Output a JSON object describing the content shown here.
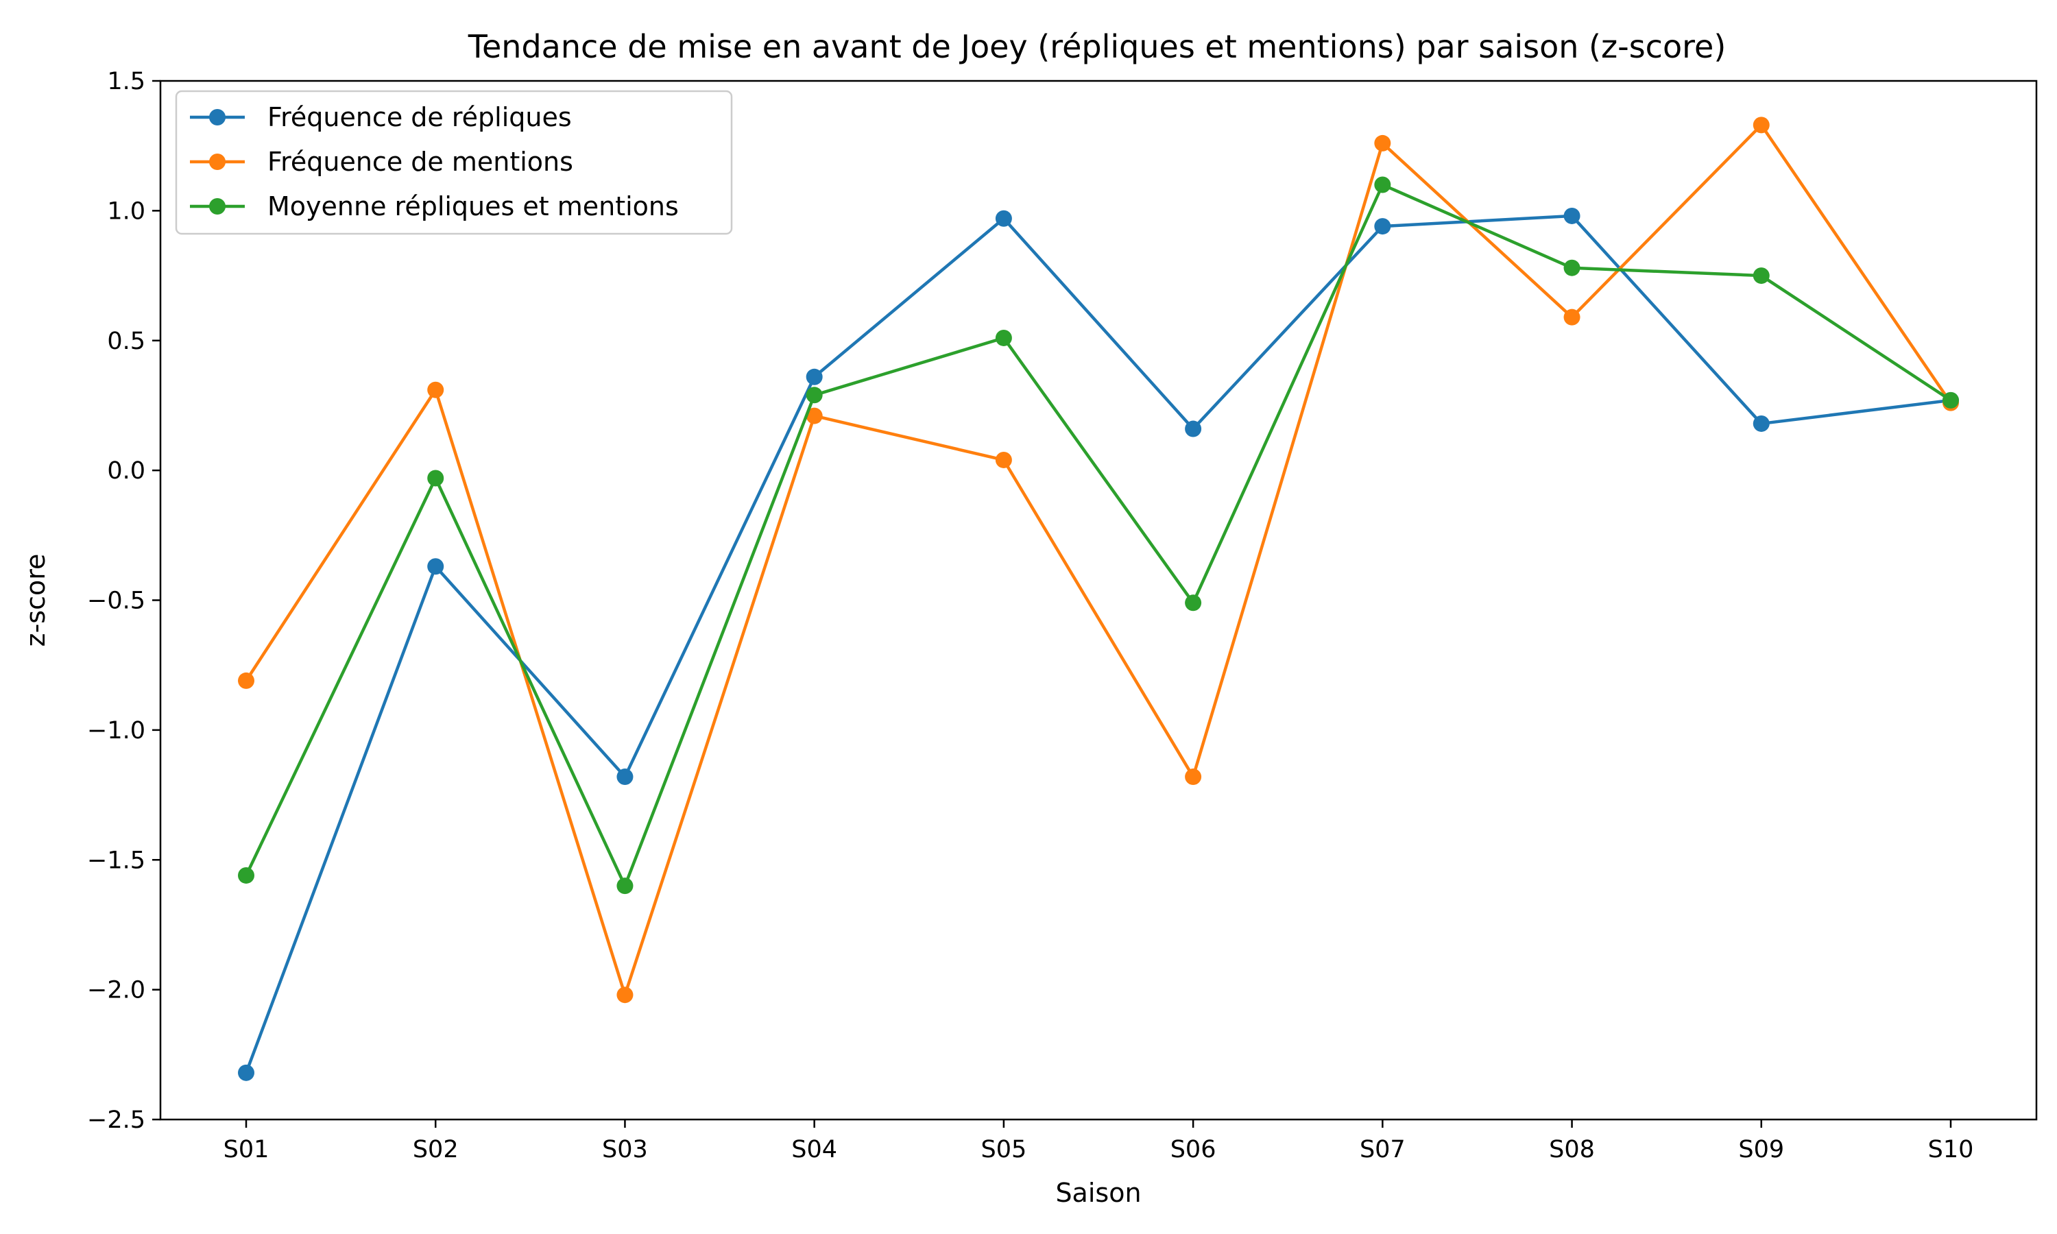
{
  "chart_data": {
    "type": "line",
    "title": "Tendance de mise en avant de Joey (répliques et mentions) par saison (z-score)",
    "xlabel": "Saison",
    "ylabel": "z-score",
    "categories": [
      "S01",
      "S02",
      "S03",
      "S04",
      "S05",
      "S06",
      "S07",
      "S08",
      "S09",
      "S10"
    ],
    "ylim": [
      -2.5,
      1.5
    ],
    "yticks": [
      -2.5,
      -2.0,
      -1.5,
      -1.0,
      -0.5,
      0.0,
      0.5,
      1.0,
      1.5
    ],
    "ytick_labels": [
      "−2.5",
      "−2.0",
      "−1.5",
      "−1.0",
      "−0.5",
      "0.0",
      "0.5",
      "1.0",
      "1.5"
    ],
    "grid": false,
    "legend_position": "top-left",
    "series": [
      {
        "name": "Fréquence de répliques",
        "color": "#1f77b4",
        "values": [
          -2.32,
          -0.37,
          -1.18,
          0.36,
          0.97,
          0.16,
          0.94,
          0.98,
          0.18,
          0.27
        ]
      },
      {
        "name": "Fréquence de mentions",
        "color": "#ff7f0e",
        "values": [
          -0.81,
          0.31,
          -2.02,
          0.21,
          0.04,
          -1.18,
          1.26,
          0.59,
          1.33,
          0.26
        ]
      },
      {
        "name": "Moyenne répliques et mentions",
        "color": "#2ca02c",
        "values": [
          -1.56,
          -0.03,
          -1.6,
          0.29,
          0.51,
          -0.51,
          1.1,
          0.78,
          0.75,
          0.27
        ]
      }
    ]
  }
}
